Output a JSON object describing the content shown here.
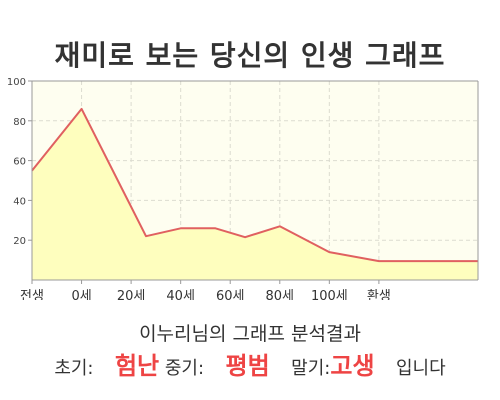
{
  "chart_data": {
    "type": "area",
    "title": "재미로 보는 당신의 인생 그래프",
    "x": [
      -10,
      0,
      13,
      20,
      27,
      33,
      40,
      50,
      60,
      70,
      80
    ],
    "y": [
      55,
      86,
      22,
      26,
      26,
      21.5,
      27,
      14,
      9.5,
      9.5,
      9.5
    ],
    "xlim": [
      -10,
      80
    ],
    "ylim": [
      0,
      100
    ],
    "yticks": [
      20,
      40,
      60,
      80,
      100
    ],
    "xticks": [
      {
        "pos": -10,
        "label": "전생"
      },
      {
        "pos": 0,
        "label": "0세"
      },
      {
        "pos": 10,
        "label": "20세"
      },
      {
        "pos": 20,
        "label": "40세"
      },
      {
        "pos": 30,
        "label": "60세"
      },
      {
        "pos": 40,
        "label": "80세"
      },
      {
        "pos": 50,
        "label": "100세"
      },
      {
        "pos": 60,
        "label": "환생"
      }
    ],
    "grid": true,
    "colors": {
      "line": "#e06060",
      "fill": "#fefebe",
      "plot_bg": "#fefef0",
      "grid": "#dcdcd0",
      "axis": "#999999"
    }
  },
  "summary": {
    "line1": "이누리님의 그래프 분석결과",
    "early_label": "초기:",
    "early_value": "험난",
    "mid_label": "중기:",
    "mid_value": "평범",
    "late_label": "말기:",
    "late_value": "고생",
    "ending": "입니다",
    "highlight_color": "#ee4444"
  }
}
